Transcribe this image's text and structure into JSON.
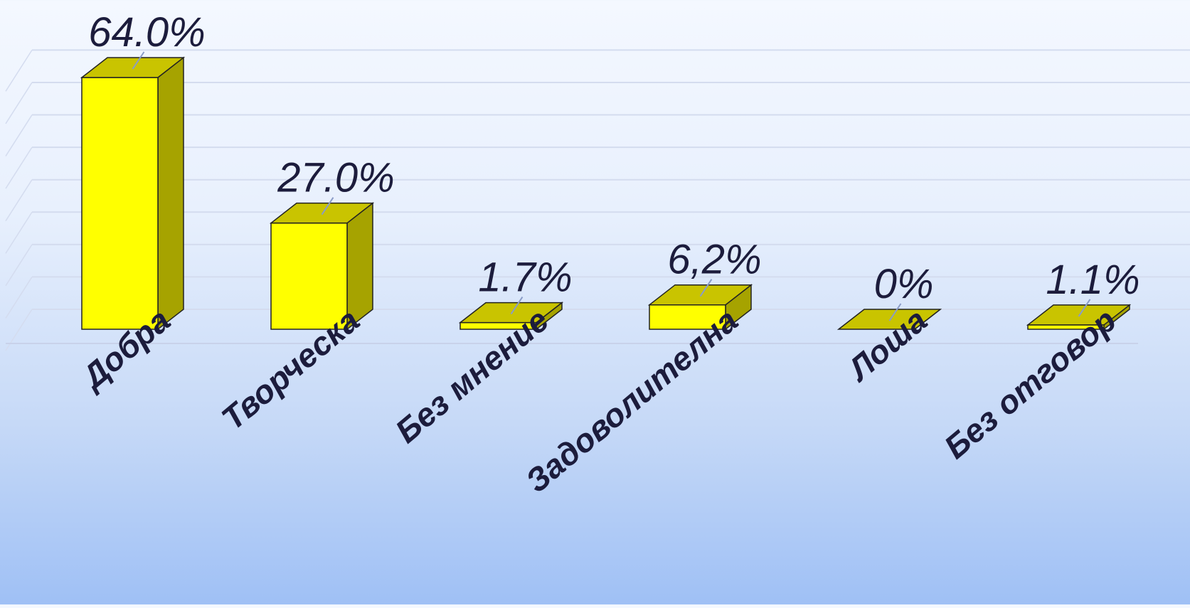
{
  "chart_data": {
    "type": "bar",
    "style": "3d",
    "categories": [
      "Добра",
      "Творческа",
      "Без мнение",
      "Задоволителна",
      "Лоша",
      "Без отговор"
    ],
    "values": [
      64.0,
      27.0,
      1.7,
      6.2,
      0,
      1.1
    ],
    "value_labels": [
      "64.0%",
      "27.0%",
      "1.7%",
      "6,2%",
      "0%",
      "1.1%"
    ],
    "ylim": [
      0,
      64
    ],
    "grid": true,
    "legend": "none",
    "colors": {
      "bar_front": "#ffff00",
      "bar_top": "#c9c400",
      "bar_side": "#a6a300",
      "outline": "#222222",
      "grid": "#d4dcef",
      "text": "#1c1c3c"
    }
  }
}
